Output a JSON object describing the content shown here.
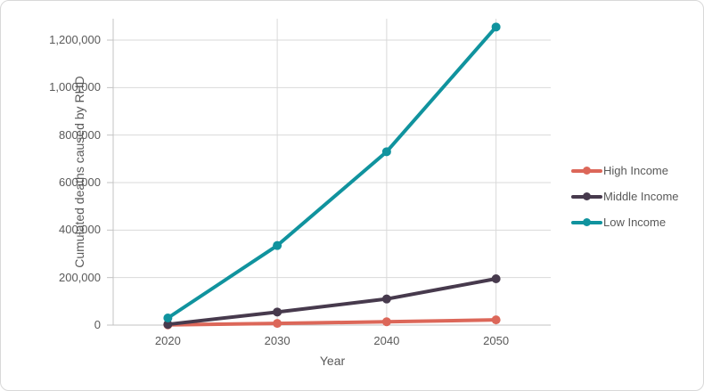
{
  "chart_data": {
    "type": "line",
    "title": "",
    "xlabel": "Year",
    "ylabel": "Cumulated deaths caused by RHD",
    "x_categories": [
      "2020",
      "2030",
      "2040",
      "2050"
    ],
    "y_ticks": [
      0,
      200000,
      400000,
      600000,
      800000,
      1000000,
      1200000
    ],
    "y_tick_labels": [
      "0",
      "200,000",
      "400,000",
      "600,000",
      "800,000",
      "1,000,000",
      "1,200,000"
    ],
    "ylim": [
      0,
      1290000
    ],
    "grid": {
      "horizontal": true,
      "vertical_at_categories": [
        "2030",
        "2040",
        "2050"
      ]
    },
    "legend_position": "right",
    "series": [
      {
        "name": "High Income",
        "color": "#DC6759",
        "values": [
          1000,
          7000,
          14000,
          22000
        ]
      },
      {
        "name": "Middle Income",
        "color": "#473A4D",
        "values": [
          3000,
          55000,
          110000,
          195000
        ]
      },
      {
        "name": "Low Income",
        "color": "#10939E",
        "values": [
          30000,
          335000,
          730000,
          1255000
        ]
      }
    ]
  },
  "colors": {
    "gridline": "#D9D9D9",
    "axis_line": "#C3C3C3",
    "tick_text": "#595959",
    "frame_border": "#D8D8D8",
    "background": "#FFFFFF"
  }
}
